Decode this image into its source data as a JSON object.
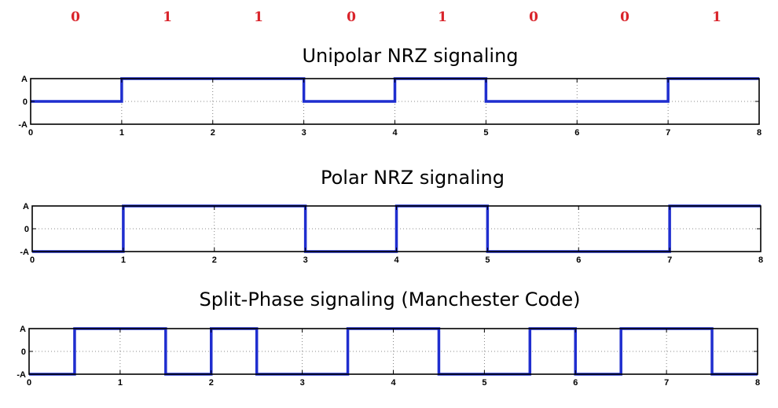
{
  "bits": [
    "0",
    "1",
    "1",
    "0",
    "1",
    "0",
    "0",
    "1"
  ],
  "colors": {
    "bits": "#d9232a",
    "signal": "#1f2ecf",
    "frame": "#000000",
    "grid": "#666666"
  },
  "chart_data": [
    {
      "type": "line",
      "title": "Unipolar NRZ signaling",
      "xlim": [
        0,
        8
      ],
      "ylim": [
        -1,
        1
      ],
      "xticks": [
        "0",
        "1",
        "2",
        "3",
        "4",
        "5",
        "6",
        "7",
        "8"
      ],
      "yticks": [
        "-A",
        "0",
        "A"
      ],
      "grid": true,
      "series": [
        {
          "x": [
            0,
            1,
            1,
            3,
            3,
            4,
            4,
            5,
            5,
            7,
            7,
            8
          ],
          "y": [
            0,
            0,
            1,
            1,
            0,
            0,
            1,
            1,
            0,
            0,
            1,
            1
          ]
        }
      ]
    },
    {
      "type": "line",
      "title": "Polar NRZ signaling",
      "xlim": [
        0,
        8
      ],
      "ylim": [
        -1,
        1
      ],
      "xticks": [
        "0",
        "1",
        "2",
        "3",
        "4",
        "5",
        "6",
        "7",
        "8"
      ],
      "yticks": [
        "-A",
        "0",
        "A"
      ],
      "grid": true,
      "series": [
        {
          "x": [
            0,
            1,
            1,
            3,
            3,
            4,
            4,
            5,
            5,
            7,
            7,
            8
          ],
          "y": [
            -1,
            -1,
            1,
            1,
            -1,
            -1,
            1,
            1,
            -1,
            -1,
            1,
            1
          ]
        }
      ]
    },
    {
      "type": "line",
      "title": "Split-Phase signaling (Manchester Code)",
      "xlim": [
        0,
        8
      ],
      "ylim": [
        -1,
        1
      ],
      "xticks": [
        "0",
        "1",
        "2",
        "3",
        "4",
        "5",
        "6",
        "7",
        "8"
      ],
      "yticks": [
        "-A",
        "0",
        "A"
      ],
      "grid": true,
      "series": [
        {
          "x": [
            0,
            0.5,
            0.5,
            1.5,
            1.5,
            2,
            2,
            2.5,
            2.5,
            3.5,
            3.5,
            4.5,
            4.5,
            5.5,
            5.5,
            6,
            6,
            6.5,
            6.5,
            7.5,
            7.5,
            8
          ],
          "y": [
            -1,
            -1,
            1,
            1,
            -1,
            -1,
            1,
            1,
            -1,
            -1,
            1,
            1,
            -1,
            -1,
            1,
            1,
            -1,
            -1,
            1,
            1,
            -1,
            -1
          ]
        }
      ]
    }
  ]
}
